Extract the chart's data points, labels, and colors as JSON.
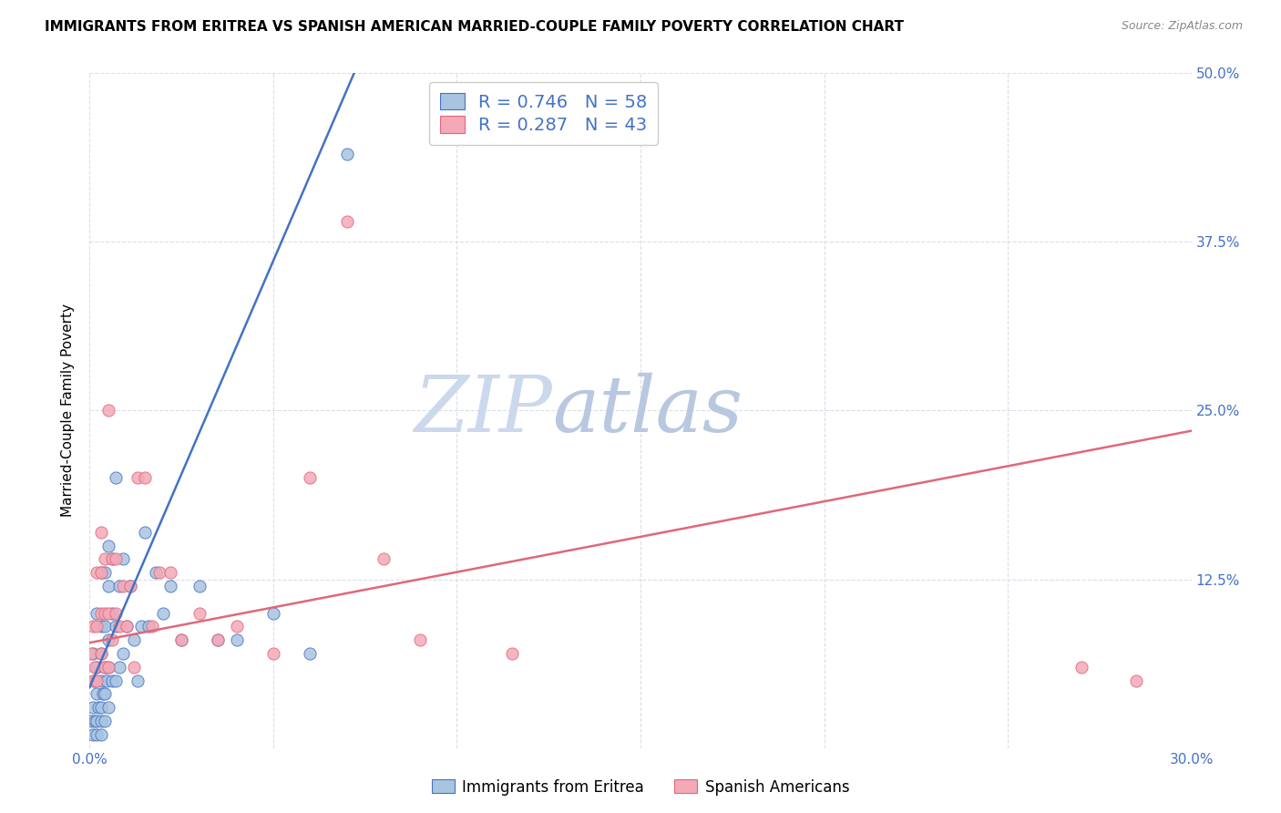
{
  "title": "IMMIGRANTS FROM ERITREA VS SPANISH AMERICAN MARRIED-COUPLE FAMILY POVERTY CORRELATION CHART",
  "source": "Source: ZipAtlas.com",
  "ylabel": "Married-Couple Family Poverty",
  "xlim": [
    0.0,
    0.3
  ],
  "ylim": [
    0.0,
    0.5
  ],
  "xticks": [
    0.0,
    0.05,
    0.1,
    0.15,
    0.2,
    0.25,
    0.3
  ],
  "xticklabels": [
    "0.0%",
    "",
    "",
    "",
    "",
    "",
    "30.0%"
  ],
  "yticks": [
    0.0,
    0.125,
    0.25,
    0.375,
    0.5
  ],
  "yticklabels": [
    "",
    "12.5%",
    "25.0%",
    "37.5%",
    "50.0%"
  ],
  "series1_color": "#a8c4e0",
  "series2_color": "#f4a8b8",
  "line1_color": "#4472c4",
  "line2_color": "#e06878",
  "R1": 0.746,
  "N1": 58,
  "R2": 0.287,
  "N2": 43,
  "legend_label1": "Immigrants from Eritrea",
  "legend_label2": "Spanish Americans",
  "watermark_zip": "ZIP",
  "watermark_atlas": "atlas",
  "background_color": "#ffffff",
  "grid_color": "#d8dfe8",
  "title_fontsize": 11,
  "tick_label_color": "#4472c4",
  "line1_x": [
    0.0,
    0.072
  ],
  "line1_y": [
    0.045,
    0.5
  ],
  "line2_x": [
    0.0,
    0.3
  ],
  "line2_y": [
    0.078,
    0.235
  ],
  "series1_x": [
    0.0005,
    0.001,
    0.001,
    0.001,
    0.0015,
    0.0015,
    0.002,
    0.002,
    0.002,
    0.002,
    0.002,
    0.0025,
    0.003,
    0.003,
    0.003,
    0.003,
    0.003,
    0.003,
    0.003,
    0.0035,
    0.004,
    0.004,
    0.004,
    0.004,
    0.004,
    0.0045,
    0.005,
    0.005,
    0.005,
    0.005,
    0.005,
    0.006,
    0.006,
    0.006,
    0.007,
    0.007,
    0.007,
    0.008,
    0.008,
    0.009,
    0.009,
    0.01,
    0.011,
    0.012,
    0.013,
    0.014,
    0.015,
    0.016,
    0.018,
    0.02,
    0.022,
    0.025,
    0.03,
    0.035,
    0.04,
    0.05,
    0.06,
    0.07
  ],
  "series1_y": [
    0.02,
    0.01,
    0.03,
    0.07,
    0.02,
    0.05,
    0.01,
    0.02,
    0.04,
    0.06,
    0.1,
    0.03,
    0.01,
    0.02,
    0.03,
    0.05,
    0.07,
    0.09,
    0.13,
    0.04,
    0.02,
    0.04,
    0.06,
    0.09,
    0.13,
    0.05,
    0.03,
    0.06,
    0.08,
    0.12,
    0.15,
    0.05,
    0.1,
    0.14,
    0.05,
    0.09,
    0.2,
    0.06,
    0.12,
    0.07,
    0.14,
    0.09,
    0.12,
    0.08,
    0.05,
    0.09,
    0.16,
    0.09,
    0.13,
    0.1,
    0.12,
    0.08,
    0.12,
    0.08,
    0.08,
    0.1,
    0.07,
    0.44
  ],
  "series2_x": [
    0.0005,
    0.001,
    0.001,
    0.0015,
    0.002,
    0.002,
    0.002,
    0.003,
    0.003,
    0.003,
    0.003,
    0.004,
    0.004,
    0.004,
    0.005,
    0.005,
    0.005,
    0.006,
    0.006,
    0.007,
    0.007,
    0.008,
    0.009,
    0.01,
    0.011,
    0.012,
    0.013,
    0.015,
    0.017,
    0.019,
    0.022,
    0.025,
    0.03,
    0.035,
    0.04,
    0.05,
    0.06,
    0.07,
    0.08,
    0.09,
    0.115,
    0.27,
    0.285
  ],
  "series2_y": [
    0.07,
    0.05,
    0.09,
    0.06,
    0.05,
    0.09,
    0.13,
    0.07,
    0.1,
    0.13,
    0.16,
    0.06,
    0.1,
    0.14,
    0.06,
    0.1,
    0.25,
    0.08,
    0.14,
    0.1,
    0.14,
    0.09,
    0.12,
    0.09,
    0.12,
    0.06,
    0.2,
    0.2,
    0.09,
    0.13,
    0.13,
    0.08,
    0.1,
    0.08,
    0.09,
    0.07,
    0.2,
    0.39,
    0.14,
    0.08,
    0.07,
    0.06,
    0.05
  ]
}
